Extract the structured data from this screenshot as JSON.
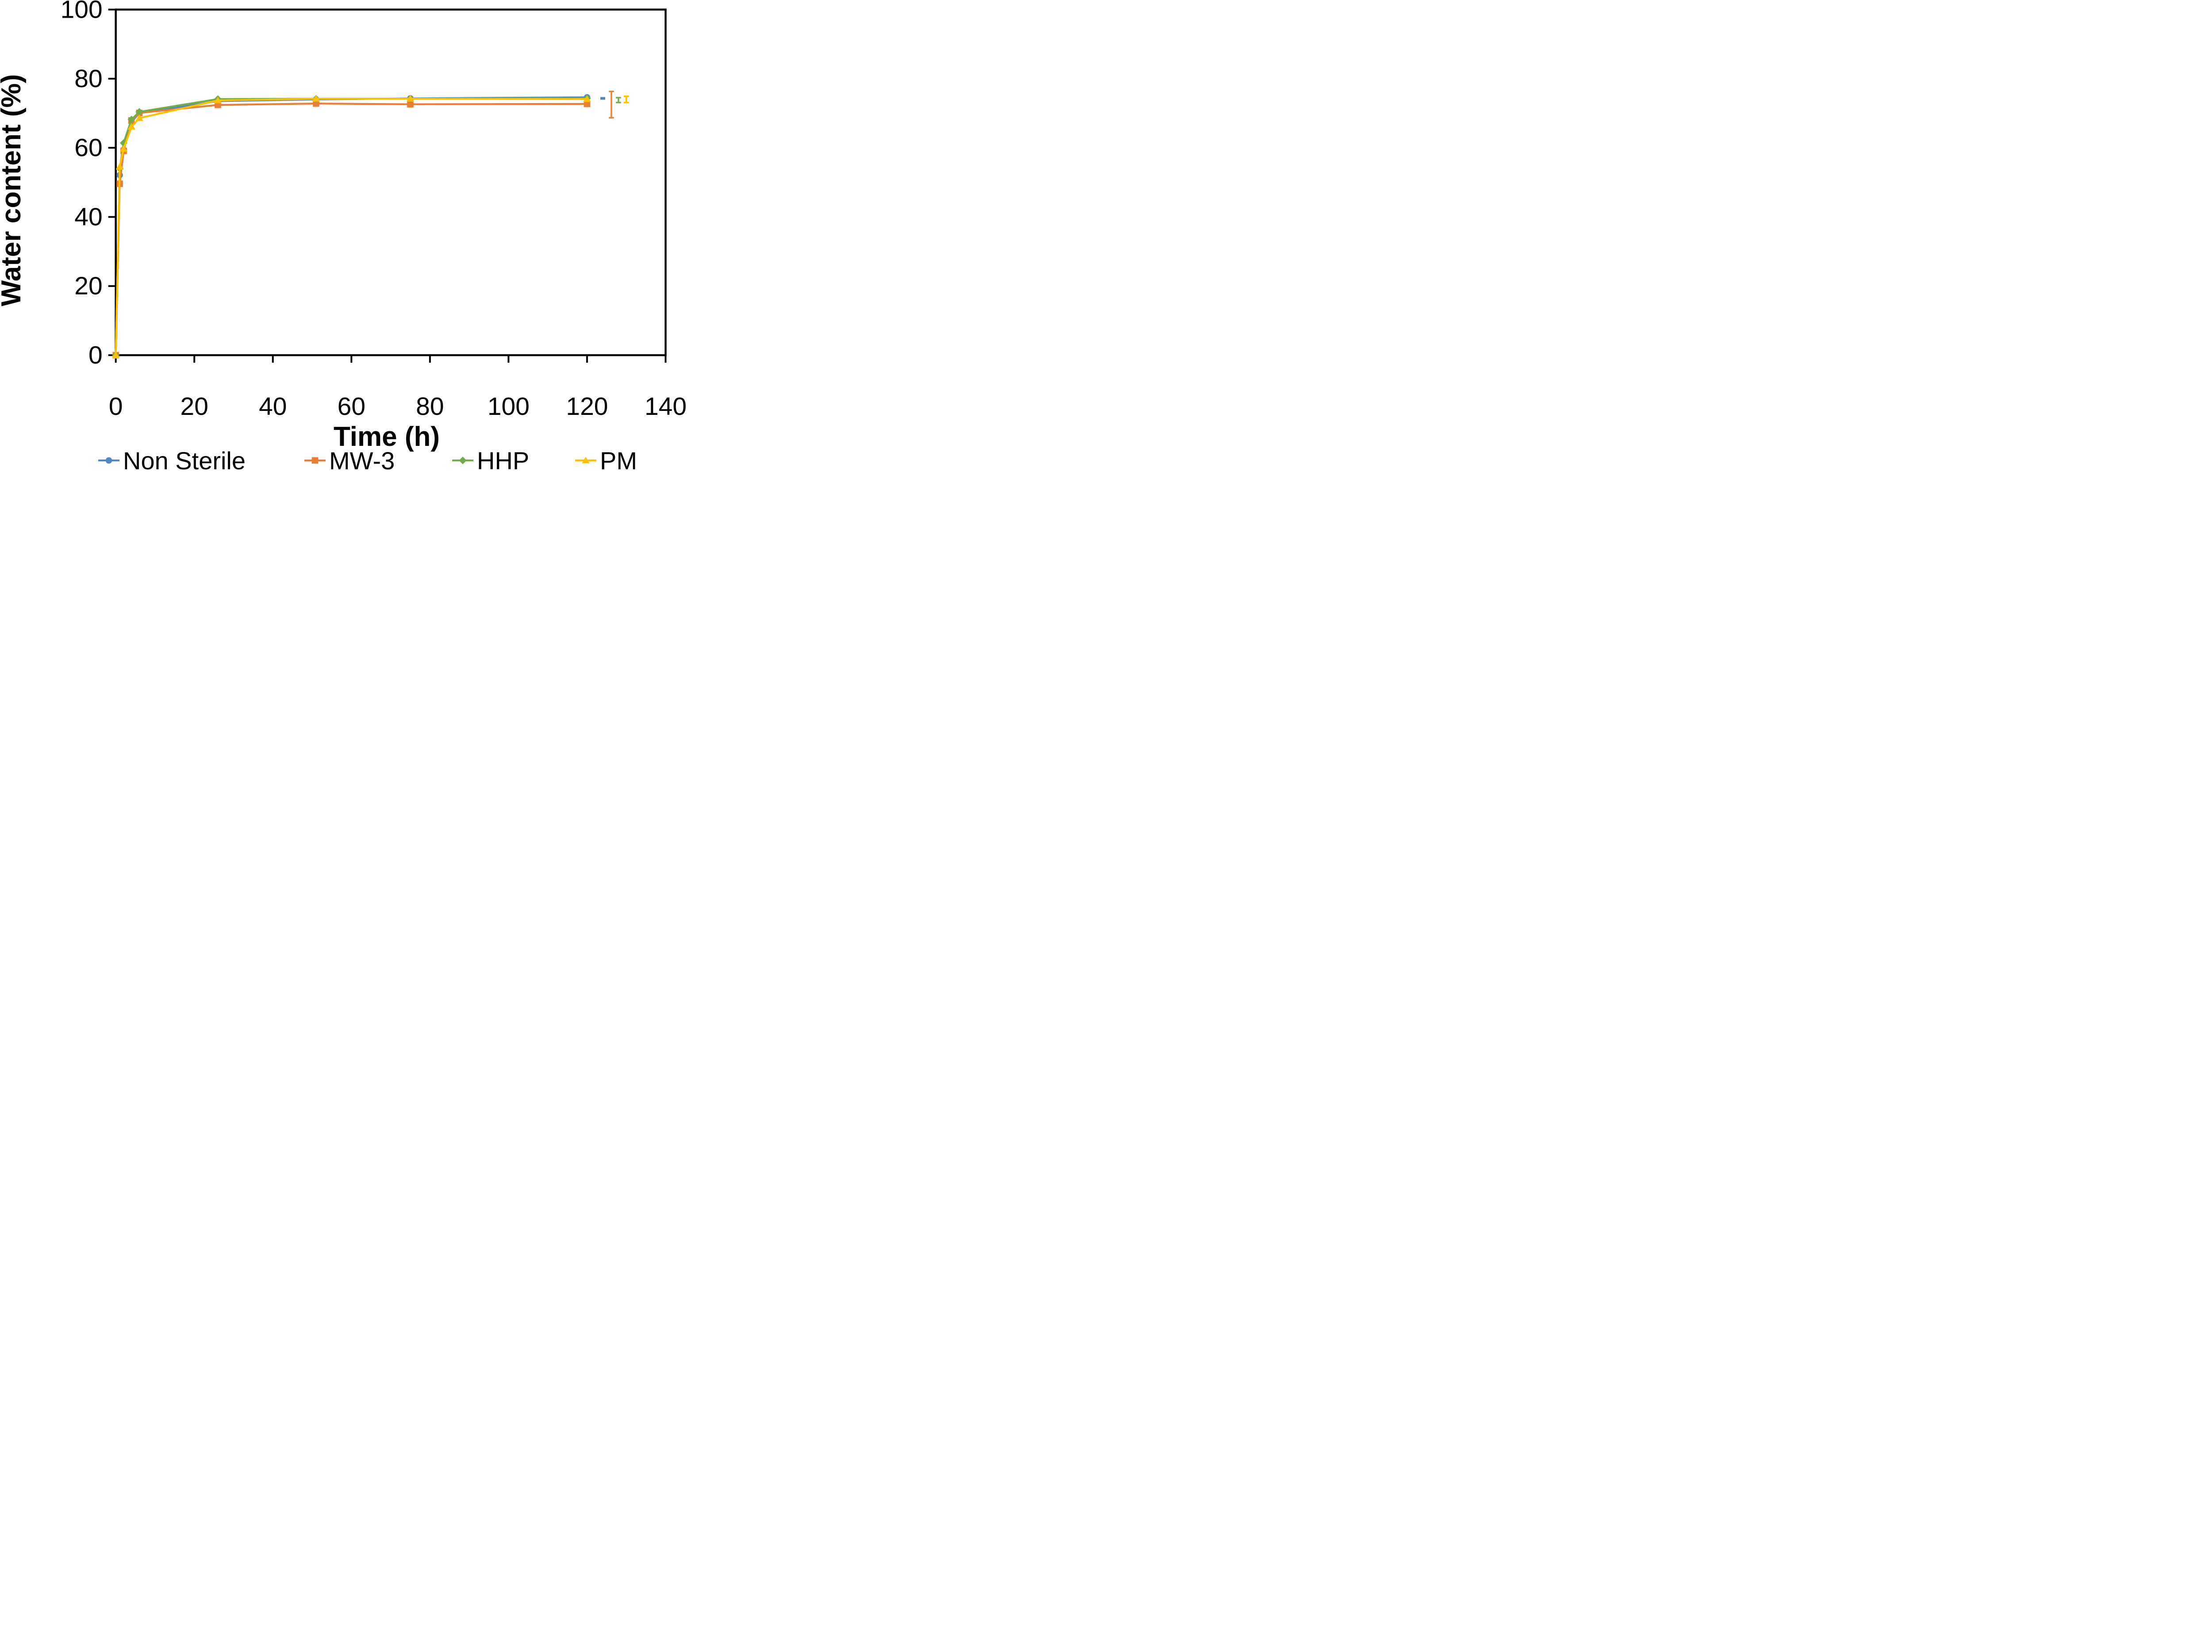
{
  "figure": {
    "background_color": "#ffffff",
    "axis_color": "#000000"
  },
  "chart_data": {
    "type": "line",
    "title": "",
    "xlabel": "Time (h)",
    "ylabel": "Water content (%)",
    "xlim": [
      0,
      140
    ],
    "ylim": [
      0,
      100
    ],
    "xticks": [
      0,
      20,
      40,
      60,
      80,
      100,
      120,
      140
    ],
    "yticks": [
      0,
      20,
      40,
      60,
      80,
      100
    ],
    "grid": false,
    "legend_position": "bottom",
    "x": [
      0,
      1,
      2,
      4,
      6,
      26,
      51,
      75,
      120
    ],
    "series": [
      {
        "name": "Non Sterile",
        "color": "#4E86C8",
        "marker": "circle",
        "values": [
          0,
          52.1,
          59.4,
          67.5,
          70.0,
          73.5,
          74.0,
          74.3,
          74.6
        ]
      },
      {
        "name": "MW-3",
        "color": "#ED7D31",
        "marker": "square",
        "values": [
          0,
          49.6,
          59.1,
          67.9,
          70.1,
          72.4,
          72.8,
          72.6,
          72.7
        ]
      },
      {
        "name": "HHP",
        "color": "#70AD47",
        "marker": "diamond",
        "values": [
          0,
          54.0,
          61.4,
          68.2,
          70.4,
          74.1,
          74.2,
          74.2,
          74.3
        ]
      },
      {
        "name": "PM",
        "color": "#FFC000",
        "marker": "triangle",
        "values": [
          0,
          54.5,
          59.7,
          66.1,
          68.6,
          73.7,
          74.2,
          74.2,
          74.1
        ]
      }
    ],
    "detached_error_bars": [
      {
        "series": "Non Sterile",
        "x": 124.0,
        "y": 74.3,
        "err": 0.45
      },
      {
        "series": "MW-3",
        "x": 126.2,
        "y": 72.5,
        "err": 3.8
      },
      {
        "series": "HHP",
        "x": 128.0,
        "y": 73.8,
        "err": 0.7
      },
      {
        "series": "PM",
        "x": 130.0,
        "y": 74.0,
        "err": 0.9
      }
    ]
  }
}
